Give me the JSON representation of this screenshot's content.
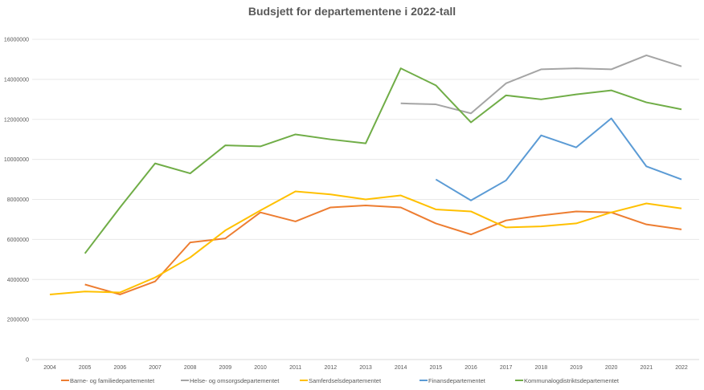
{
  "chart_data": {
    "type": "line",
    "title": "Budsjett for departementene i 2022-tall",
    "xlabel": "",
    "ylabel": "",
    "ylim": [
      0,
      16000000
    ],
    "yticks": [
      "0",
      "2000000",
      "4000000",
      "6000000",
      "8000000",
      "10000000",
      "12000000",
      "14000000",
      "16000000"
    ],
    "grid": true,
    "legend": "bottom",
    "x": [
      "2004",
      "2005",
      "2006",
      "2007",
      "2008",
      "2009",
      "2010",
      "2011",
      "2012",
      "2013",
      "2014",
      "2015",
      "2016",
      "2017",
      "2018",
      "2019",
      "2020",
      "2021",
      "2022"
    ],
    "series": [
      {
        "name": "Barne- og familiedepartementet",
        "color": "#ED7D31",
        "values": [
          null,
          3750000,
          3250000,
          3900000,
          5850000,
          6050000,
          7350000,
          6900000,
          7600000,
          7700000,
          7600000,
          6800000,
          6250000,
          6950000,
          7200000,
          7400000,
          7350000,
          6750000,
          6500000
        ]
      },
      {
        "name": "Helse- og omsorgsdepartementet",
        "color": "#A5A5A5",
        "values": [
          null,
          null,
          null,
          null,
          null,
          null,
          null,
          null,
          null,
          null,
          12800000,
          12750000,
          12300000,
          13800000,
          14500000,
          14550000,
          14500000,
          15200000,
          14650000
        ]
      },
      {
        "name": "Samferdselsdepartementet",
        "color": "#FFC000",
        "values": [
          3250000,
          3400000,
          3350000,
          4100000,
          5100000,
          6450000,
          7450000,
          8400000,
          8250000,
          8000000,
          8200000,
          7500000,
          7400000,
          6600000,
          6650000,
          6800000,
          7350000,
          7800000,
          7550000
        ]
      },
      {
        "name": "Finansdepartementet",
        "color": "#5B9BD5",
        "values": [
          null,
          null,
          null,
          null,
          null,
          null,
          null,
          null,
          null,
          null,
          null,
          9000000,
          7950000,
          8950000,
          11200000,
          10600000,
          12050000,
          9650000,
          9000000
        ]
      },
      {
        "name": "Kommunalogdistriktsdepartementet",
        "color": "#70AD47",
        "values": [
          null,
          5300000,
          7600000,
          9800000,
          9300000,
          10700000,
          10650000,
          11250000,
          11000000,
          10800000,
          14550000,
          13700000,
          11850000,
          13200000,
          13000000,
          13250000,
          13450000,
          12850000,
          12500000
        ]
      }
    ]
  }
}
